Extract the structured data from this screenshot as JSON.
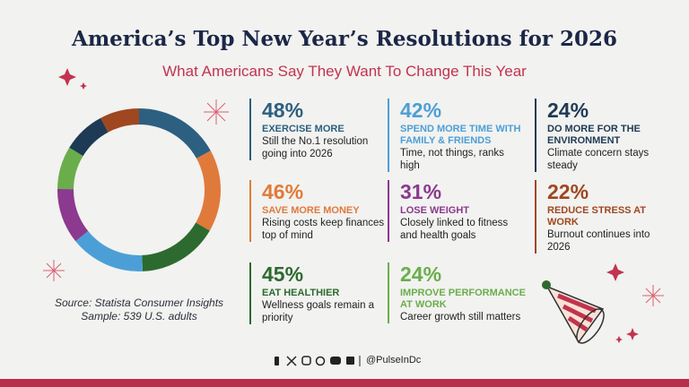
{
  "chart_data": {
    "type": "donut",
    "title": "America’s Top New Year’s Resolutions for 2026",
    "subtitle": "What Americans Say They Want To Change This Year",
    "source": "Source: Statista Consumer Insights",
    "sample": "Sample: 539 U.S. adults",
    "handle": "@PulseInDc",
    "categories": [
      "EXERCISE MORE",
      "SAVE MORE MONEY",
      "EAT HEALTHIER",
      "SPEND MORE TIME WITH FAMILY & FRIENDS",
      "LOSE WEIGHT",
      "IMPROVE PERFORMANCE AT WORK",
      "DO MORE FOR THE ENVIRONMENT",
      "REDUCE STRESS AT WORK"
    ],
    "values": [
      48,
      46,
      45,
      42,
      31,
      24,
      24,
      22
    ],
    "value_labels": [
      "48%",
      "46%",
      "45%",
      "42%",
      "31%",
      "24%",
      "24%",
      "22%"
    ],
    "descriptions": [
      "Still the No.1 resolution going into 2026",
      "Rising costs keep finances top of mind",
      "Wellness goals remain a priority",
      "Time, not things, ranks high",
      "Closely linked to fitness and health goals",
      "Career growth still matters",
      "Climate concern stays steady",
      "Burnout continues into 2026"
    ],
    "colors": [
      "#2c5f80",
      "#e07a3b",
      "#2d6a2f",
      "#4c9fd6",
      "#8c3990",
      "#6aae4b",
      "#1f3a54",
      "#9f4720"
    ]
  }
}
